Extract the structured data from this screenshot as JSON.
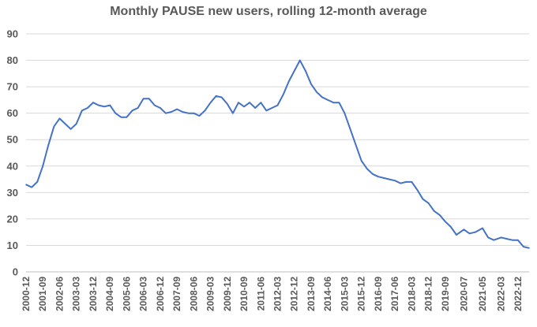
{
  "chart_data": {
    "type": "line",
    "title": "Monthly PAUSE new users, rolling 12-month average",
    "xlabel": "",
    "ylabel": "",
    "ylim": [
      0,
      90
    ],
    "yticks": [
      0,
      10,
      20,
      30,
      40,
      50,
      60,
      70,
      80,
      90
    ],
    "grid": true,
    "legend": "none",
    "x_tick_labels": [
      "2000-12",
      "2001-09",
      "2002-06",
      "2003-03",
      "2003-12",
      "2004-09",
      "2005-06",
      "2006-03",
      "2006-12",
      "2007-09",
      "2008-06",
      "2009-03",
      "2009-12",
      "2010-09",
      "2011-06",
      "2012-03",
      "2012-12",
      "2013-09",
      "2014-06",
      "2015-03",
      "2015-12",
      "2016-09",
      "2017-06",
      "2018-03",
      "2018-12",
      "2019-09",
      "2020-07",
      "2021-05",
      "2022-03",
      "2022-12"
    ],
    "series": [
      {
        "color": "#4472c4",
        "points": [
          [
            "2000-12",
            33
          ],
          [
            "2001-03",
            32
          ],
          [
            "2001-06",
            34
          ],
          [
            "2001-09",
            40
          ],
          [
            "2001-12",
            48
          ],
          [
            "2002-03",
            55
          ],
          [
            "2002-06",
            58
          ],
          [
            "2002-09",
            56
          ],
          [
            "2002-12",
            54
          ],
          [
            "2003-03",
            56
          ],
          [
            "2003-06",
            61
          ],
          [
            "2003-09",
            62
          ],
          [
            "2003-12",
            64
          ],
          [
            "2004-03",
            63
          ],
          [
            "2004-06",
            62.5
          ],
          [
            "2004-09",
            63
          ],
          [
            "2004-12",
            60
          ],
          [
            "2005-03",
            58.5
          ],
          [
            "2005-06",
            58.5
          ],
          [
            "2005-09",
            61
          ],
          [
            "2005-12",
            62
          ],
          [
            "2006-03",
            65.5
          ],
          [
            "2006-06",
            65.5
          ],
          [
            "2006-09",
            63
          ],
          [
            "2006-12",
            62
          ],
          [
            "2007-03",
            60
          ],
          [
            "2007-06",
            60.5
          ],
          [
            "2007-09",
            61.5
          ],
          [
            "2007-12",
            60.5
          ],
          [
            "2008-03",
            60
          ],
          [
            "2008-06",
            60
          ],
          [
            "2008-09",
            59
          ],
          [
            "2008-12",
            61
          ],
          [
            "2009-03",
            64
          ],
          [
            "2009-06",
            66.5
          ],
          [
            "2009-09",
            66
          ],
          [
            "2009-12",
            63.5
          ],
          [
            "2010-03",
            60
          ],
          [
            "2010-06",
            64
          ],
          [
            "2010-09",
            62.5
          ],
          [
            "2010-12",
            64
          ],
          [
            "2011-03",
            62
          ],
          [
            "2011-06",
            64
          ],
          [
            "2011-09",
            61
          ],
          [
            "2011-12",
            62
          ],
          [
            "2012-03",
            63
          ],
          [
            "2012-06",
            67
          ],
          [
            "2012-09",
            72
          ],
          [
            "2012-12",
            76
          ],
          [
            "2013-03",
            80
          ],
          [
            "2013-06",
            76
          ],
          [
            "2013-09",
            71
          ],
          [
            "2013-12",
            68
          ],
          [
            "2014-03",
            66
          ],
          [
            "2014-06",
            65
          ],
          [
            "2014-09",
            64
          ],
          [
            "2014-12",
            64
          ],
          [
            "2015-03",
            60
          ],
          [
            "2015-06",
            54
          ],
          [
            "2015-09",
            48
          ],
          [
            "2015-12",
            42
          ],
          [
            "2016-03",
            39
          ],
          [
            "2016-06",
            37
          ],
          [
            "2016-09",
            36
          ],
          [
            "2016-12",
            35.5
          ],
          [
            "2017-03",
            35
          ],
          [
            "2017-06",
            34.5
          ],
          [
            "2017-09",
            33.5
          ],
          [
            "2017-12",
            34
          ],
          [
            "2018-03",
            34
          ],
          [
            "2018-06",
            31
          ],
          [
            "2018-09",
            27.5
          ],
          [
            "2018-12",
            26
          ],
          [
            "2019-03",
            23
          ],
          [
            "2019-06",
            21.5
          ],
          [
            "2019-09",
            19
          ],
          [
            "2019-12",
            17
          ],
          [
            "2020-03",
            14
          ],
          [
            "2020-07",
            16
          ],
          [
            "2020-10",
            14.5
          ],
          [
            "2021-01",
            15
          ],
          [
            "2021-05",
            16.5
          ],
          [
            "2021-08",
            13
          ],
          [
            "2021-11",
            12
          ],
          [
            "2022-03",
            13
          ],
          [
            "2022-06",
            12.5
          ],
          [
            "2022-09",
            12
          ],
          [
            "2022-12",
            12
          ],
          [
            "2023-03",
            9.5
          ],
          [
            "2023-06",
            9
          ]
        ]
      }
    ]
  }
}
